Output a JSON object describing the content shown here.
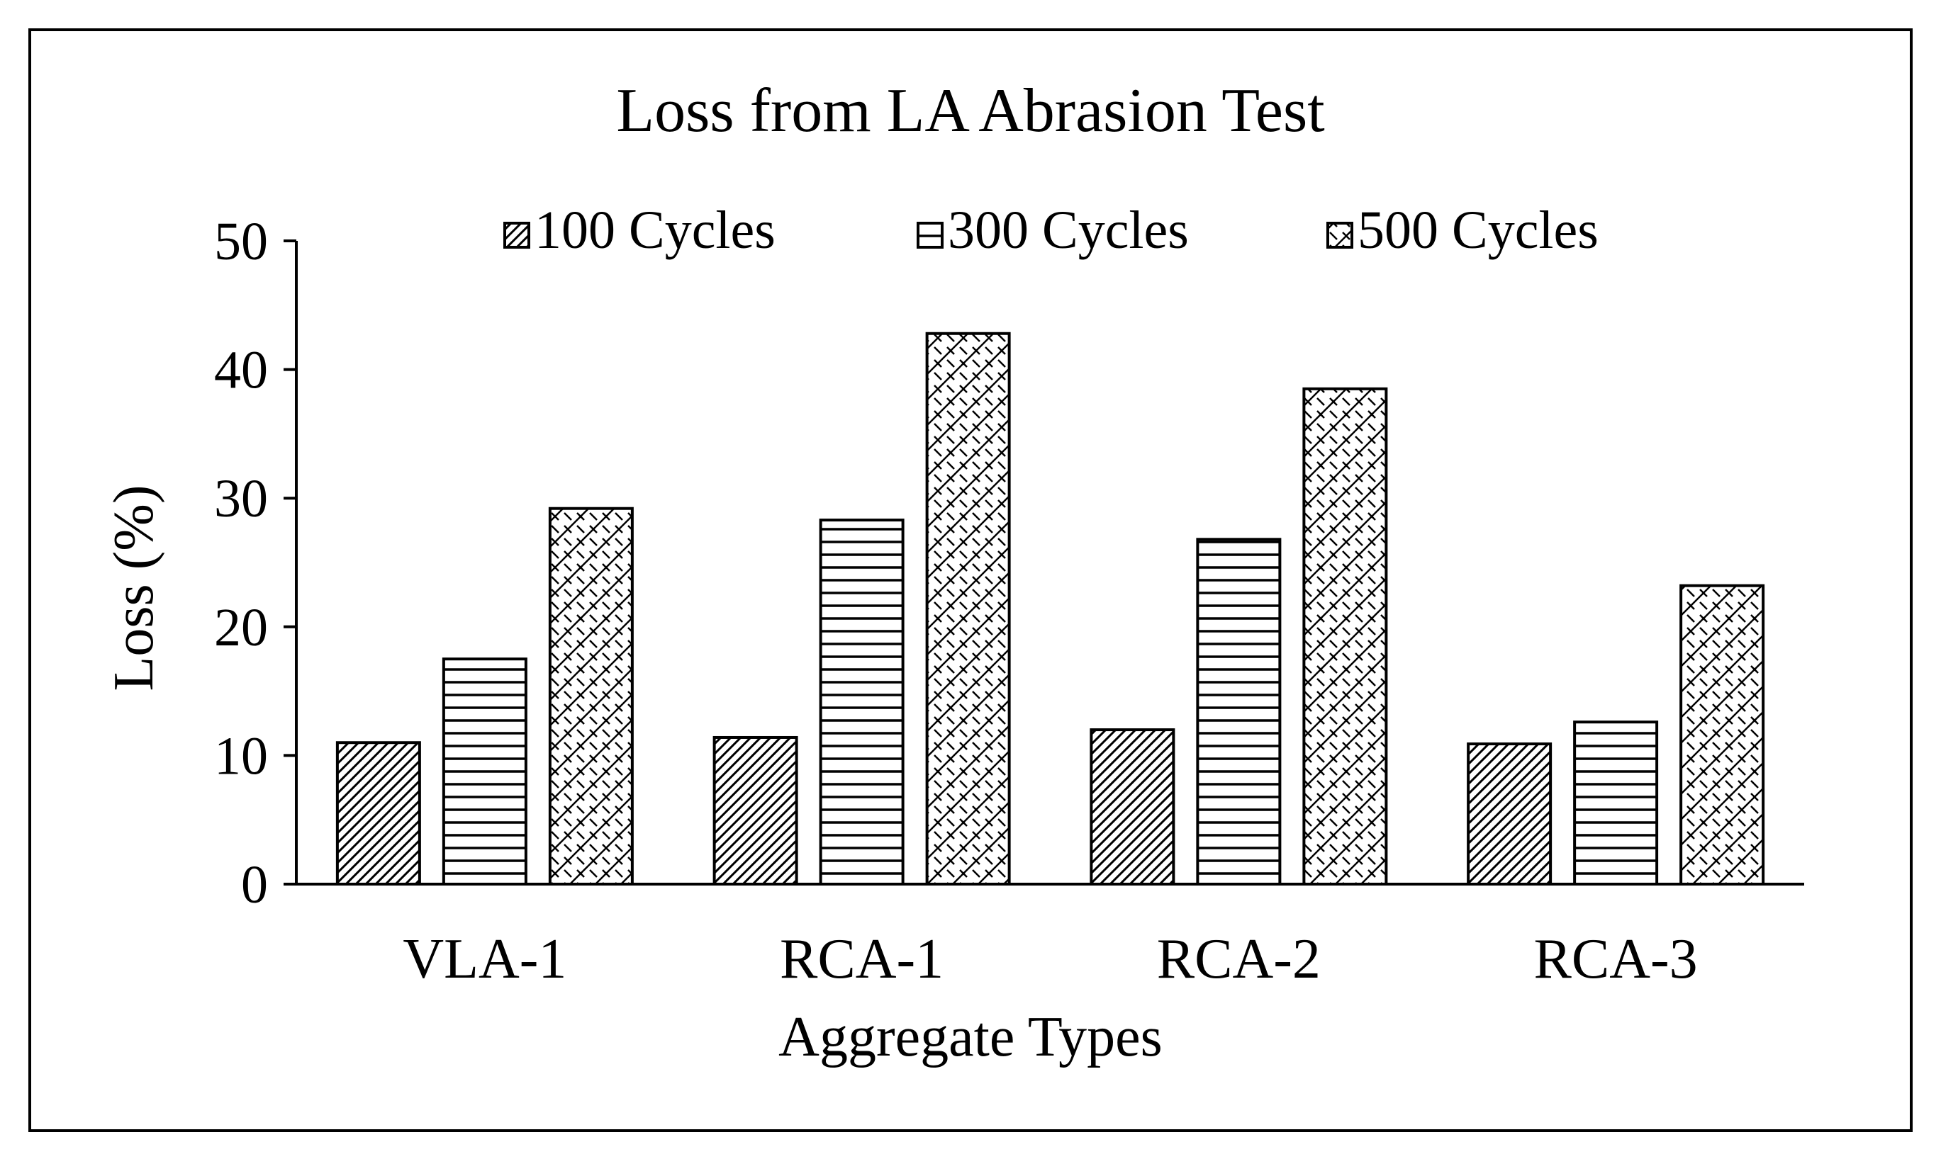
{
  "chart_data": {
    "type": "bar",
    "title": "Loss from LA Abrasion Test",
    "xlabel": "Aggregate Types",
    "ylabel": "Loss (%)",
    "ylim": [
      0,
      50
    ],
    "yticks": [
      0,
      10,
      20,
      30,
      40,
      50
    ],
    "ytick_labels": [
      "0",
      "10",
      "20",
      "30",
      "40",
      "50"
    ],
    "grid": false,
    "legend_position": "top",
    "categories": [
      "VLA-1",
      "RCA-1",
      "RCA-2",
      "RCA-3"
    ],
    "series": [
      {
        "name": "100 Cycles",
        "pattern": "diagonal-hatch",
        "values": [
          11.0,
          11.4,
          12.0,
          10.9
        ]
      },
      {
        "name": "300 Cycles",
        "pattern": "horizontal-lines",
        "values": [
          17.5,
          28.3,
          26.8,
          12.6
        ]
      },
      {
        "name": "500 Cycles",
        "pattern": "diamond-weave",
        "values": [
          29.2,
          42.8,
          38.5,
          23.2
        ]
      }
    ],
    "colors": {
      "outline": "#000000",
      "background": "#ffffff",
      "pattern_fill": "#000000"
    }
  }
}
